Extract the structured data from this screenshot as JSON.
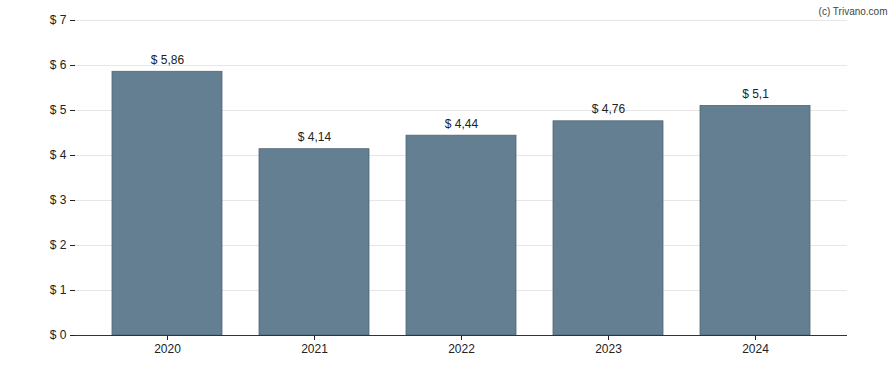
{
  "chart_data": {
    "type": "bar",
    "annotations": [
      "(c) Trivano.com"
    ],
    "categories": [
      "2020",
      "2021",
      "2022",
      "2023",
      "2024"
    ],
    "values": [
      5.86,
      4.14,
      4.44,
      4.76,
      5.1
    ],
    "value_labels": [
      "$ 5,86",
      "$ 4,14",
      "$ 4,44",
      "$ 4,76",
      "$ 5,1"
    ],
    "data_labels": true,
    "color": "#647f91",
    "ylim": [
      0,
      7
    ],
    "yticks": [
      {
        "value": 0,
        "label": "$ 0"
      },
      {
        "value": 1,
        "label": "$ 1"
      },
      {
        "value": 2,
        "label": "$ 2"
      },
      {
        "value": 3,
        "label": "$ 3"
      },
      {
        "value": 4,
        "label": "$ 4"
      },
      {
        "value": 5,
        "label": "$ 5"
      },
      {
        "value": 6,
        "label": "$ 6"
      },
      {
        "value": 7,
        "label": "$ 7"
      }
    ],
    "grid": true
  }
}
